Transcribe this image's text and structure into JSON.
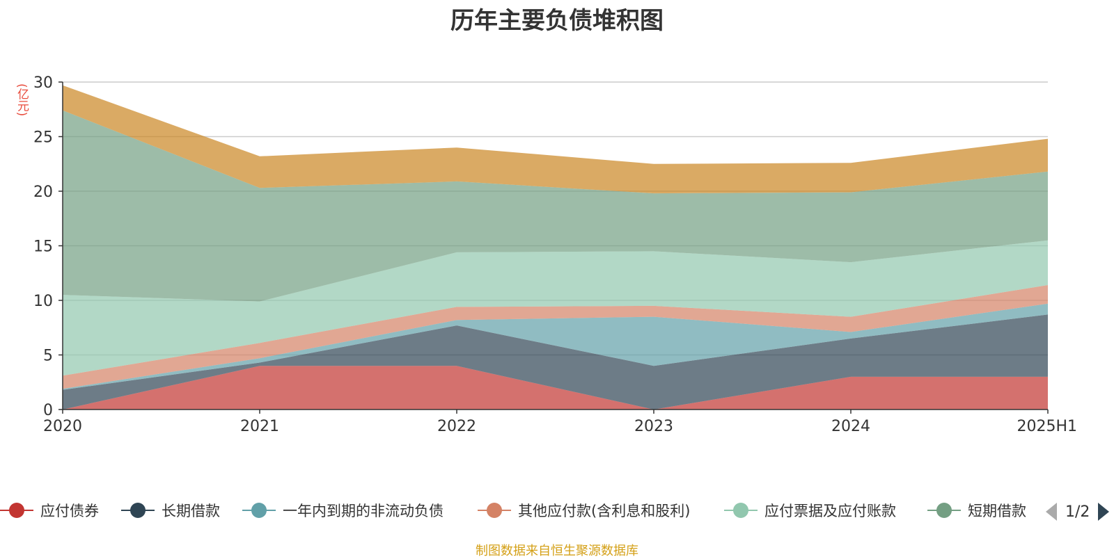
{
  "chart_data": {
    "type": "area",
    "stacked": true,
    "title": "历年主要负债堆积图",
    "unit": "(亿元)",
    "x": [
      "2020",
      "2021",
      "2022",
      "2023",
      "2024",
      "2025H1"
    ],
    "ylim": [
      0,
      30
    ],
    "yticks": [
      0,
      5,
      10,
      15,
      20,
      25,
      30
    ],
    "grid": true,
    "legend_position": "bottom",
    "series": [
      {
        "name": "应付债券",
        "color": "#c23531",
        "values": [
          0.0,
          4.0,
          4.0,
          0.0,
          3.0,
          3.0
        ]
      },
      {
        "name": "长期借款",
        "color": "#2f4554",
        "values": [
          1.8,
          0.3,
          3.7,
          4.0,
          3.5,
          5.7
        ]
      },
      {
        "name": "一年内到期的非流动负债",
        "color": "#61a0a8",
        "values": [
          0.1,
          0.4,
          0.5,
          4.5,
          0.6,
          1.0
        ]
      },
      {
        "name": "其他应付款(含利息和股利)",
        "color": "#d48265",
        "values": [
          1.2,
          1.4,
          1.2,
          1.0,
          1.4,
          1.7
        ]
      },
      {
        "name": "应付票据及应付账款",
        "color": "#91c7ae",
        "values": [
          7.4,
          3.8,
          5.0,
          5.0,
          5.0,
          4.1
        ]
      },
      {
        "name": "短期借款",
        "color": "#749f83",
        "values": [
          16.9,
          10.4,
          6.5,
          5.3,
          6.4,
          6.3
        ]
      },
      {
        "name": "",
        "color": "#ca8622",
        "values": [
          2.3,
          2.9,
          3.1,
          2.7,
          2.7,
          3.0
        ]
      }
    ]
  },
  "legend": {
    "visible_items": [
      "应付债券",
      "长期借款",
      "一年内到期的非流动负债",
      "其他应付款(含利息和股利)",
      "应付票据及应付账款",
      "短期借款"
    ],
    "page": "1/2"
  },
  "source_note": "制图数据来自恒生聚源数据库"
}
